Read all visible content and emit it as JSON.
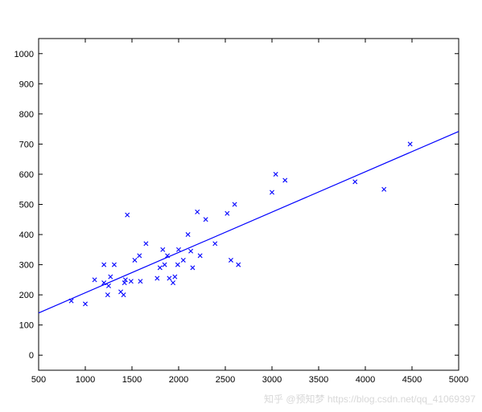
{
  "chart_data": {
    "type": "scatter",
    "title": "",
    "xlabel": "",
    "ylabel": "",
    "xlim": [
      500,
      5000
    ],
    "ylim": [
      -50,
      1050
    ],
    "xticks": [
      500,
      1000,
      1500,
      2000,
      2500,
      3000,
      3500,
      4000,
      4500,
      5000
    ],
    "yticks": [
      0,
      100,
      200,
      300,
      400,
      500,
      600,
      700,
      800,
      900,
      1000
    ],
    "grid": false,
    "marker": "x",
    "color": "#0000ff",
    "series": [
      {
        "points": [
          [
            850,
            180
          ],
          [
            1000,
            170
          ],
          [
            1100,
            250
          ],
          [
            1200,
            240
          ],
          [
            1200,
            300
          ],
          [
            1240,
            200
          ],
          [
            1250,
            230
          ],
          [
            1270,
            260
          ],
          [
            1310,
            300
          ],
          [
            1380,
            210
          ],
          [
            1410,
            200
          ],
          [
            1420,
            240
          ],
          [
            1430,
            250
          ],
          [
            1450,
            465
          ],
          [
            1490,
            245
          ],
          [
            1530,
            315
          ],
          [
            1580,
            330
          ],
          [
            1590,
            245
          ],
          [
            1650,
            370
          ],
          [
            1770,
            255
          ],
          [
            1800,
            290
          ],
          [
            1830,
            350
          ],
          [
            1850,
            300
          ],
          [
            1880,
            330
          ],
          [
            1900,
            255
          ],
          [
            1940,
            240
          ],
          [
            1960,
            260
          ],
          [
            1990,
            300
          ],
          [
            2000,
            350
          ],
          [
            2050,
            315
          ],
          [
            2100,
            400
          ],
          [
            2130,
            345
          ],
          [
            2150,
            290
          ],
          [
            2200,
            475
          ],
          [
            2230,
            330
          ],
          [
            2290,
            450
          ],
          [
            2390,
            370
          ],
          [
            2520,
            470
          ],
          [
            2560,
            315
          ],
          [
            2600,
            500
          ],
          [
            2640,
            300
          ],
          [
            3000,
            540
          ],
          [
            3040,
            600
          ],
          [
            3140,
            580
          ],
          [
            3890,
            575
          ],
          [
            4200,
            550
          ],
          [
            4480,
            700
          ]
        ]
      }
    ],
    "fit_line": {
      "x": [
        500,
        5000
      ],
      "y": [
        140,
        742
      ]
    }
  },
  "watermark": {
    "text": "知乎 @预知梦  https://blog.csdn.net/qq_41069397"
  }
}
